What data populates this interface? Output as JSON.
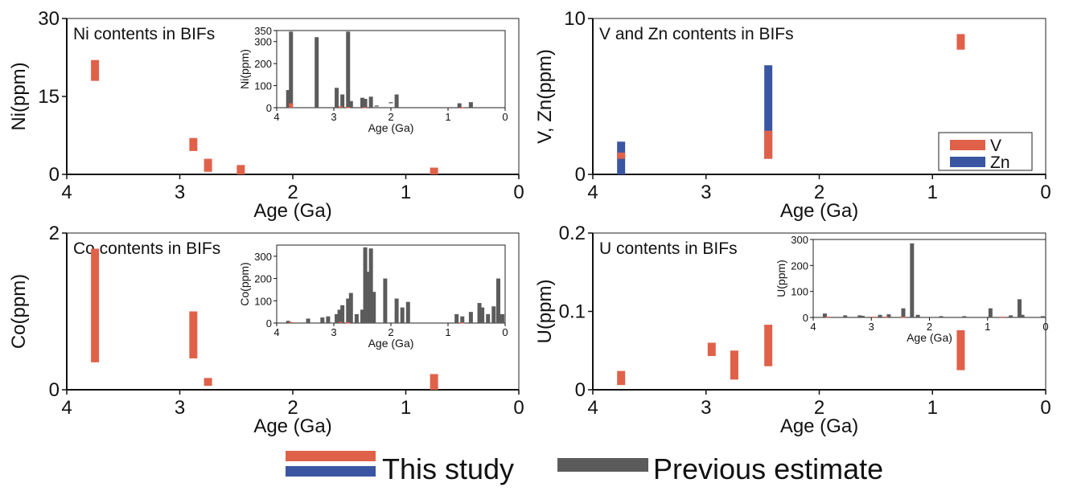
{
  "colors": {
    "this_study": "#e0614a",
    "zn": "#3a56a2",
    "previous": "#5b5b5b",
    "axis": "#111111"
  },
  "legend": {
    "this_study": "This study",
    "previous": "Previous estimate"
  },
  "chart_data": [
    {
      "id": "ni",
      "type": "bar",
      "title": "Ni contents in BIFs",
      "xlabel": "Age (Ga)",
      "ylabel": "Ni(ppm)",
      "xlim": [
        4,
        0
      ],
      "ylim": [
        0,
        30
      ],
      "xticks": [
        "4",
        "3",
        "2",
        "1",
        "0"
      ],
      "yticks": [
        "0",
        "15",
        "30"
      ],
      "series": [
        {
          "color_key": "this_study",
          "bars": [
            {
              "x": 3.75,
              "low": 18,
              "high": 22
            },
            {
              "x": 2.88,
              "low": 4.5,
              "high": 7
            },
            {
              "x": 2.75,
              "low": 0.5,
              "high": 3
            },
            {
              "x": 2.46,
              "low": 0,
              "high": 1.8
            },
            {
              "x": 0.75,
              "low": 0,
              "high": 1.3
            }
          ]
        }
      ],
      "inset": {
        "xlabel": "Age (Ga)",
        "ylabel": "Ni(ppm)",
        "xlim": [
          4,
          0
        ],
        "ylim": [
          0,
          350
        ],
        "xticks": [
          "4",
          "3",
          "2",
          "1",
          "0"
        ],
        "yticks": [
          "0",
          "100",
          "200",
          "300",
          "350"
        ],
        "ytick_values": [
          0,
          100,
          200,
          300,
          350
        ],
        "prev": [
          {
            "x": 3.8,
            "low": 0,
            "high": 80
          },
          {
            "x": 3.75,
            "low": 0,
            "high": 345
          },
          {
            "x": 3.3,
            "low": 0,
            "high": 320
          },
          {
            "x": 2.95,
            "low": 0,
            "high": 90
          },
          {
            "x": 2.85,
            "low": 0,
            "high": 60
          },
          {
            "x": 2.75,
            "low": 0,
            "high": 345
          },
          {
            "x": 2.7,
            "low": 0,
            "high": 30
          },
          {
            "x": 2.5,
            "low": 0,
            "high": 45
          },
          {
            "x": 2.45,
            "low": 0,
            "high": 40
          },
          {
            "x": 2.35,
            "low": 0,
            "high": 50
          },
          {
            "x": 2.25,
            "low": 5,
            "high": 10
          },
          {
            "x": 2.0,
            "low": 20,
            "high": 25
          },
          {
            "x": 1.9,
            "low": 0,
            "high": 60
          },
          {
            "x": 0.8,
            "low": 0,
            "high": 20
          },
          {
            "x": 0.6,
            "low": 0,
            "high": 25
          }
        ],
        "study": [
          {
            "x": 3.75,
            "low": 0,
            "high": 20
          },
          {
            "x": 2.88,
            "low": 0,
            "high": 6
          },
          {
            "x": 2.75,
            "low": 0,
            "high": 3
          },
          {
            "x": 2.46,
            "low": 0,
            "high": 2
          },
          {
            "x": 0.75,
            "low": 0,
            "high": 1
          }
        ]
      }
    },
    {
      "id": "vzn",
      "type": "bar",
      "title": "V and Zn contents in BIFs",
      "xlabel": "Age (Ga)",
      "ylabel": "V, Zn(ppm)",
      "xlim": [
        4,
        0
      ],
      "ylim": [
        0,
        10
      ],
      "xticks": [
        "4",
        "3",
        "2",
        "1",
        "0"
      ],
      "yticks": [
        "0",
        "10"
      ],
      "legend": [
        {
          "name": "V",
          "color_key": "this_study"
        },
        {
          "name": "Zn",
          "color_key": "zn"
        }
      ],
      "series": [
        {
          "name": "Zn",
          "color_key": "zn",
          "bars": [
            {
              "x": 3.75,
              "low": 0,
              "high": 2.1
            },
            {
              "x": 2.45,
              "low": 1.0,
              "high": 7.0
            }
          ]
        },
        {
          "name": "V",
          "color_key": "this_study",
          "bars": [
            {
              "x": 3.75,
              "low": 1.0,
              "high": 1.4
            },
            {
              "x": 2.45,
              "low": 1.0,
              "high": 2.8
            },
            {
              "x": 0.75,
              "low": 8.0,
              "high": 9.0
            }
          ]
        }
      ]
    },
    {
      "id": "co",
      "type": "bar",
      "title": "Co contents in BIFs",
      "xlabel": "Age (Ga)",
      "ylabel": "Co(ppm)",
      "xlim": [
        4,
        0
      ],
      "ylim": [
        0,
        2
      ],
      "xticks": [
        "4",
        "3",
        "2",
        "1",
        "0"
      ],
      "yticks": [
        "0",
        "2"
      ],
      "series": [
        {
          "color_key": "this_study",
          "bars": [
            {
              "x": 3.75,
              "low": 0.35,
              "high": 1.8
            },
            {
              "x": 2.88,
              "low": 0.4,
              "high": 1.0
            },
            {
              "x": 2.75,
              "low": 0.05,
              "high": 0.15
            },
            {
              "x": 0.75,
              "low": 0,
              "high": 0.2
            }
          ]
        }
      ],
      "inset": {
        "xlabel": "Age (Ga)",
        "ylabel": "Co(ppm)",
        "xlim": [
          4,
          0
        ],
        "ylim": [
          0,
          350
        ],
        "xticks": [
          "4",
          "3",
          "2",
          "1",
          "0"
        ],
        "yticks": [
          "0",
          "100",
          "200",
          "300"
        ],
        "ytick_values": [
          0,
          100,
          200,
          300
        ],
        "prev": [
          {
            "x": 3.8,
            "low": 0,
            "high": 10
          },
          {
            "x": 3.45,
            "low": 0,
            "high": 20
          },
          {
            "x": 3.2,
            "low": 0,
            "high": 25
          },
          {
            "x": 3.1,
            "low": 0,
            "high": 30
          },
          {
            "x": 2.95,
            "low": 0,
            "high": 40
          },
          {
            "x": 2.9,
            "low": 0,
            "high": 60
          },
          {
            "x": 2.85,
            "low": 0,
            "high": 80
          },
          {
            "x": 2.75,
            "low": 0,
            "high": 110
          },
          {
            "x": 2.7,
            "low": 0,
            "high": 135
          },
          {
            "x": 2.6,
            "low": 0,
            "high": 40
          },
          {
            "x": 2.5,
            "low": 0,
            "high": 60
          },
          {
            "x": 2.45,
            "low": 0,
            "high": 340
          },
          {
            "x": 2.4,
            "low": 0,
            "high": 230
          },
          {
            "x": 2.35,
            "low": 0,
            "high": 335
          },
          {
            "x": 2.3,
            "low": 0,
            "high": 140
          },
          {
            "x": 2.1,
            "low": 0,
            "high": 200
          },
          {
            "x": 1.9,
            "low": 0,
            "high": 110
          },
          {
            "x": 1.8,
            "low": 0,
            "high": 70
          },
          {
            "x": 1.7,
            "low": 0,
            "high": 95
          },
          {
            "x": 0.85,
            "low": 0,
            "high": 40
          },
          {
            "x": 0.75,
            "low": 0,
            "high": 30
          },
          {
            "x": 0.6,
            "low": 0,
            "high": 50
          },
          {
            "x": 0.45,
            "low": 0,
            "high": 90
          },
          {
            "x": 0.4,
            "low": 0,
            "high": 70
          },
          {
            "x": 0.3,
            "low": 0,
            "high": 40
          },
          {
            "x": 0.2,
            "low": 0,
            "high": 75
          },
          {
            "x": 0.12,
            "low": 0,
            "high": 200
          },
          {
            "x": 0.05,
            "low": 0,
            "high": 40
          }
        ],
        "study": [
          {
            "x": 3.75,
            "low": 0,
            "high": 5
          },
          {
            "x": 2.88,
            "low": 0,
            "high": 5
          },
          {
            "x": 2.75,
            "low": 0,
            "high": 3
          },
          {
            "x": 0.75,
            "low": 0,
            "high": 3
          }
        ]
      }
    },
    {
      "id": "u",
      "type": "bar",
      "title": "U contents in BIFs",
      "xlabel": "Age (Ga)",
      "ylabel": "U(ppm)",
      "xlim": [
        4,
        0
      ],
      "ylim": [
        0,
        0.2
      ],
      "xticks": [
        "4",
        "3",
        "2",
        "1",
        "0"
      ],
      "yticks": [
        "0",
        "0.1",
        "0.2"
      ],
      "series": [
        {
          "color_key": "this_study",
          "bars": [
            {
              "x": 3.75,
              "low": 0.006,
              "high": 0.024
            },
            {
              "x": 2.95,
              "low": 0.043,
              "high": 0.06
            },
            {
              "x": 2.75,
              "low": 0.013,
              "high": 0.05
            },
            {
              "x": 2.45,
              "low": 0.03,
              "high": 0.083
            },
            {
              "x": 0.75,
              "low": 0.025,
              "high": 0.076
            }
          ]
        }
      ],
      "inset": {
        "xlabel": "Age (Ga)",
        "ylabel": "U(ppm)",
        "xlim": [
          4,
          0
        ],
        "ylim": [
          0,
          300
        ],
        "xticks": [
          "4",
          "3",
          "2",
          "1",
          "0"
        ],
        "yticks": [
          "0",
          "100",
          "200",
          "300"
        ],
        "ytick_values": [
          0,
          100,
          200,
          300
        ],
        "prev": [
          {
            "x": 3.8,
            "low": 0,
            "high": 15
          },
          {
            "x": 3.45,
            "low": 0,
            "high": 8
          },
          {
            "x": 3.2,
            "low": 0,
            "high": 8
          },
          {
            "x": 3.15,
            "low": 0,
            "high": 6
          },
          {
            "x": 2.85,
            "low": 0,
            "high": 10
          },
          {
            "x": 2.7,
            "low": 0,
            "high": 12
          },
          {
            "x": 2.45,
            "low": 0,
            "high": 35
          },
          {
            "x": 2.3,
            "low": 0,
            "high": 285
          },
          {
            "x": 2.2,
            "low": 0,
            "high": 10
          },
          {
            "x": 1.8,
            "low": 0,
            "high": 5
          },
          {
            "x": 1.4,
            "low": 0,
            "high": 5
          },
          {
            "x": 0.95,
            "low": 0,
            "high": 35
          },
          {
            "x": 0.6,
            "low": 0,
            "high": 8
          },
          {
            "x": 0.45,
            "low": 0,
            "high": 70
          },
          {
            "x": 0.4,
            "low": 0,
            "high": 10
          },
          {
            "x": 0.05,
            "low": 0,
            "high": 5
          }
        ],
        "study": [
          {
            "x": 3.75,
            "low": 0,
            "high": 3
          },
          {
            "x": 2.95,
            "low": 0,
            "high": 3
          },
          {
            "x": 2.75,
            "low": 0,
            "high": 3
          },
          {
            "x": 2.45,
            "low": 0,
            "high": 3
          },
          {
            "x": 0.75,
            "low": 0,
            "high": 3
          }
        ]
      }
    }
  ]
}
